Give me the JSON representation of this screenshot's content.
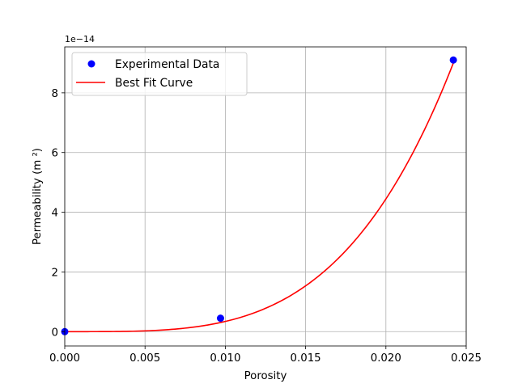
{
  "chart_data": {
    "type": "scatter",
    "title": "",
    "xlabel": "Porosity",
    "ylabel": "Permeability (m ²)",
    "y_offset_text": "1e−14",
    "xlim": [
      0.0,
      0.025
    ],
    "ylim": [
      -0.48,
      9.54
    ],
    "x_ticks": [
      0.0,
      0.005,
      0.01,
      0.015,
      0.02,
      0.025
    ],
    "x_tick_labels": [
      "0.000",
      "0.005",
      "0.010",
      "0.015",
      "0.020",
      "0.025"
    ],
    "y_ticks": [
      0,
      2,
      4,
      6,
      8
    ],
    "y_tick_labels": [
      "0",
      "2",
      "4",
      "6",
      "8"
    ],
    "grid": true,
    "legend_position": "upper-left",
    "series": [
      {
        "name": "Experimental Data",
        "kind": "scatter",
        "color": "#0000ff",
        "x": [
          0.0,
          0.0097,
          0.0242
        ],
        "y": [
          0.0,
          0.45,
          9.1
        ]
      },
      {
        "name": "Best Fit Curve",
        "kind": "line",
        "color": "#ff0000",
        "model": "power",
        "exponent": 3.7,
        "x_range": [
          0.0,
          0.0242
        ],
        "y_at_max": 9.0
      }
    ]
  }
}
